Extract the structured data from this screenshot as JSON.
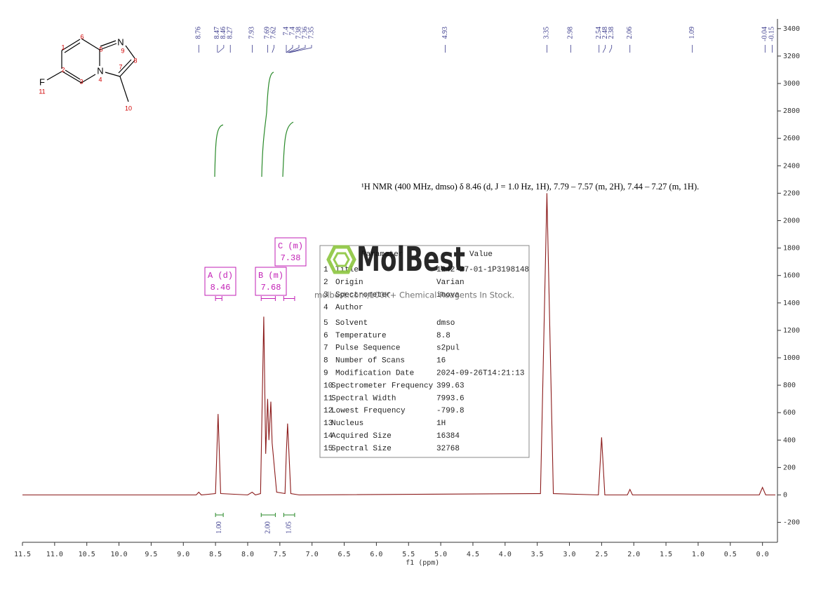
{
  "chart_data": {
    "type": "line",
    "x_label": "f1 (ppm)",
    "annotation": "¹H NMR (400 MHz, dmso) δ 8.46 (d, J = 1.0 Hz, 1H), 7.79 – 7.57 (m, 2H), 7.44 – 7.27 (m, 1H).",
    "color": "#8b1a1a",
    "x": [
      11.5,
      8.8,
      8.76,
      8.72,
      8.5,
      8.46,
      8.42,
      8.0,
      7.93,
      7.88,
      7.8,
      7.75,
      7.72,
      7.69,
      7.67,
      7.64,
      7.62,
      7.55,
      7.42,
      7.4,
      7.38,
      7.36,
      7.33,
      7.2,
      3.45,
      3.35,
      3.25,
      2.55,
      2.5,
      2.45,
      2.1,
      2.06,
      2.02,
      0.05,
      0.0,
      -0.05,
      -0.2
    ],
    "values": [
      0,
      0,
      20,
      0,
      10,
      590,
      10,
      0,
      20,
      0,
      10,
      1300,
      300,
      700,
      400,
      680,
      380,
      20,
      10,
      300,
      520,
      320,
      10,
      0,
      10,
      2200,
      10,
      0,
      420,
      0,
      0,
      40,
      0,
      0,
      55,
      0,
      0
    ],
    "xlim": [
      11.5,
      -0.2
    ],
    "ylim": [
      -330,
      3440
    ],
    "xticks": [
      11.5,
      {
        "value": 11,
        "label": "11.0"
      },
      10.5,
      {
        "value": 10,
        "label": "10.0"
      },
      9.5,
      {
        "value": 9,
        "label": "9.0"
      },
      8.5,
      {
        "value": 8,
        "label": "8.0"
      },
      7.5,
      {
        "value": 7,
        "label": "7.0"
      },
      6.5,
      {
        "value": 6,
        "label": "6.0"
      },
      5.5,
      {
        "value": 5,
        "label": "5.0"
      },
      4.5,
      {
        "value": 4,
        "label": "4.0"
      },
      3.5,
      {
        "value": 3,
        "label": "3.0"
      },
      2.5,
      {
        "value": 2,
        "label": "2.0"
      },
      1.5,
      {
        "value": 1,
        "label": "1.0"
      },
      0.5,
      {
        "value": 0,
        "label": "0.0"
      }
    ],
    "yticks": [
      -200,
      0,
      200,
      400,
      600,
      800,
      1000,
      1200,
      1400,
      1600,
      1800,
      2000,
      2200,
      2400,
      2600,
      2800,
      3000,
      3200,
      3400
    ],
    "peak_labels": [
      8.76,
      8.47,
      8.46,
      8.27,
      7.93,
      7.69,
      7.62,
      7.4,
      7.4,
      7.38,
      7.36,
      7.35,
      4.93,
      3.35,
      2.98,
      2.54,
      2.48,
      2.38,
      2.06,
      1.09,
      -0.04,
      -0.15
    ],
    "integrals": [
      {
        "from": 8.5,
        "to": 8.38,
        "label": "1.00"
      },
      {
        "from": 7.79,
        "to": 7.57,
        "label": "2.00"
      },
      {
        "from": 7.44,
        "to": 7.27,
        "label": "1.05"
      }
    ],
    "multiplets": [
      {
        "name": "A (d)",
        "shift": 8.46,
        "from": 8.5,
        "to": 8.4
      },
      {
        "name": "B (m)",
        "shift": 7.68,
        "from": 7.79,
        "to": 7.57
      },
      {
        "name": "C (m)",
        "shift": 7.38,
        "from": 7.44,
        "to": 7.27
      }
    ]
  },
  "parameters": {
    "header": [
      "Parameter",
      "Value"
    ],
    "rows": [
      [
        "1",
        "Title",
        "1242-27-01-1P3198148"
      ],
      [
        "2",
        "Origin",
        "Varian"
      ],
      [
        "3",
        "Spectrometer",
        "inova"
      ],
      [
        "4",
        "Author",
        ""
      ],
      [
        "5",
        "Solvent",
        "dmso"
      ],
      [
        "6",
        "Temperature",
        "8.8"
      ],
      [
        "7",
        "Pulse Sequence",
        "s2pul"
      ],
      [
        "8",
        "Number of Scans",
        "16"
      ],
      [
        "9",
        "Modification Date",
        "2024-09-26T14:21:13"
      ],
      [
        "10",
        "Spectrometer Frequency",
        "399.63"
      ],
      [
        "11",
        "Spectral Width",
        "7993.6"
      ],
      [
        "12",
        "Lowest Frequency",
        "-799.8"
      ],
      [
        "13",
        "Nucleus",
        "1H"
      ],
      [
        "14",
        "Acquired Size",
        "16384"
      ],
      [
        "15",
        "Spectral Size",
        "32768"
      ]
    ]
  },
  "watermark": {
    "logo": "MolBest",
    "text": "molbest.com,100K+ Chemical Reagents In Stock."
  },
  "structure": {
    "atoms": [
      "N",
      "N",
      "F"
    ],
    "numbers": [
      1,
      2,
      3,
      4,
      5,
      6,
      7,
      8,
      9,
      10,
      11
    ]
  }
}
